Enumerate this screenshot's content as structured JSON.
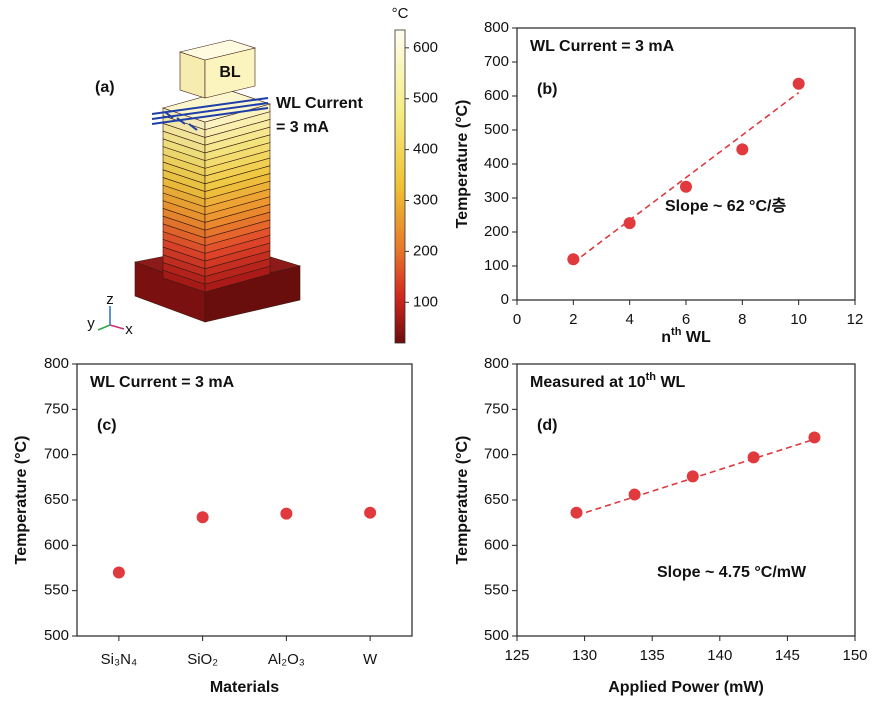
{
  "illustration": {
    "panel_label": "(a)",
    "block_label": "BL",
    "current_label": [
      "WL Current",
      "= 3 mA"
    ],
    "axes_labels": {
      "x": "x",
      "y": "y",
      "z": "z"
    },
    "colorbar": {
      "unit": "°C",
      "lim": [
        20,
        635
      ],
      "ticks": [
        100,
        200,
        300,
        400,
        500,
        600
      ]
    }
  },
  "chart_data": [
    {
      "type": "scatter",
      "panel_label": "(b)",
      "annotation": "WL Current = 3 mA",
      "slope_label": "Slope ~ 62 °C/층",
      "xlabel": [
        "n",
        "th",
        " WL"
      ],
      "ylabel": "Temperature (°C)",
      "color": "#e0393e",
      "x": [
        2,
        4,
        6,
        8,
        10
      ],
      "values": [
        120,
        226,
        333,
        443,
        636
      ],
      "fit": {
        "x": [
          2,
          10
        ],
        "values": [
          110,
          610
        ]
      },
      "xlim": [
        0,
        12
      ],
      "xticks": [
        0,
        2,
        4,
        6,
        8,
        10,
        12
      ],
      "ylim": [
        0,
        800
      ],
      "yticks": [
        0,
        100,
        200,
        300,
        400,
        500,
        600,
        700,
        800
      ]
    },
    {
      "type": "scatter",
      "panel_label": "(c)",
      "annotation": "WL Current = 3 mA",
      "xlabel": "Materials",
      "ylabel": "Temperature (°C)",
      "color": "#e0393e",
      "categories": [
        "Si₃N₄",
        "SiO₂",
        "Al₂O₃",
        "W"
      ],
      "values": [
        570,
        631,
        635,
        636
      ],
      "ylim": [
        500,
        800
      ],
      "yticks": [
        500,
        550,
        600,
        650,
        700,
        750,
        800
      ]
    },
    {
      "type": "scatter",
      "panel_label": "(d)",
      "annotation": [
        "Measured at 10",
        "th",
        " WL"
      ],
      "slope_label": "Slope ~ 4.75 °C/mW",
      "xlabel": "Applied Power (mW)",
      "ylabel": "Temperature (°C)",
      "color": "#e0393e",
      "x": [
        129.4,
        133.7,
        138,
        142.5,
        147
      ],
      "values": [
        636,
        656,
        676,
        697,
        719
      ],
      "fit": {
        "x": [
          129.4,
          147
        ],
        "values": [
          633,
          717
        ]
      },
      "xlim": [
        125,
        150
      ],
      "xticks": [
        125,
        130,
        135,
        140,
        145,
        150
      ],
      "ylim": [
        500,
        800
      ],
      "yticks": [
        500,
        550,
        600,
        650,
        700,
        750,
        800
      ]
    }
  ]
}
